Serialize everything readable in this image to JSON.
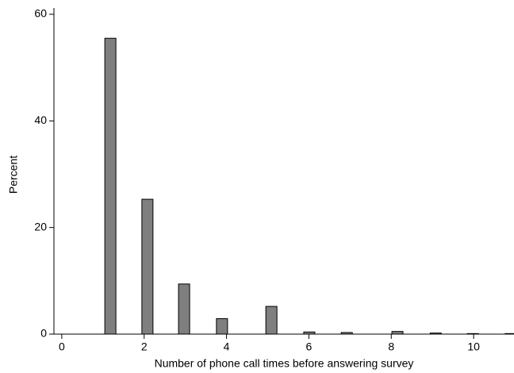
{
  "chart_data": {
    "type": "bar",
    "x_label": "Number of phone call times before answering survey",
    "y_label": "Percent",
    "x": [
      1.18,
      2.08,
      2.97,
      3.89,
      5.09,
      6.01,
      6.92,
      8.15,
      9.08,
      9.98,
      10.9
    ],
    "values": [
      55.5,
      25.3,
      9.4,
      2.9,
      5.2,
      0.4,
      0.3,
      0.5,
      0.2,
      0.1,
      0.1
    ],
    "color": "#7f7f7f",
    "xlim": [
      -0.19,
      10.98
    ],
    "xticks": [
      0,
      2,
      4,
      6,
      8,
      10
    ],
    "ylim": [
      0,
      60
    ],
    "yticks": [
      0,
      20,
      40,
      60
    ],
    "grid": false
  }
}
